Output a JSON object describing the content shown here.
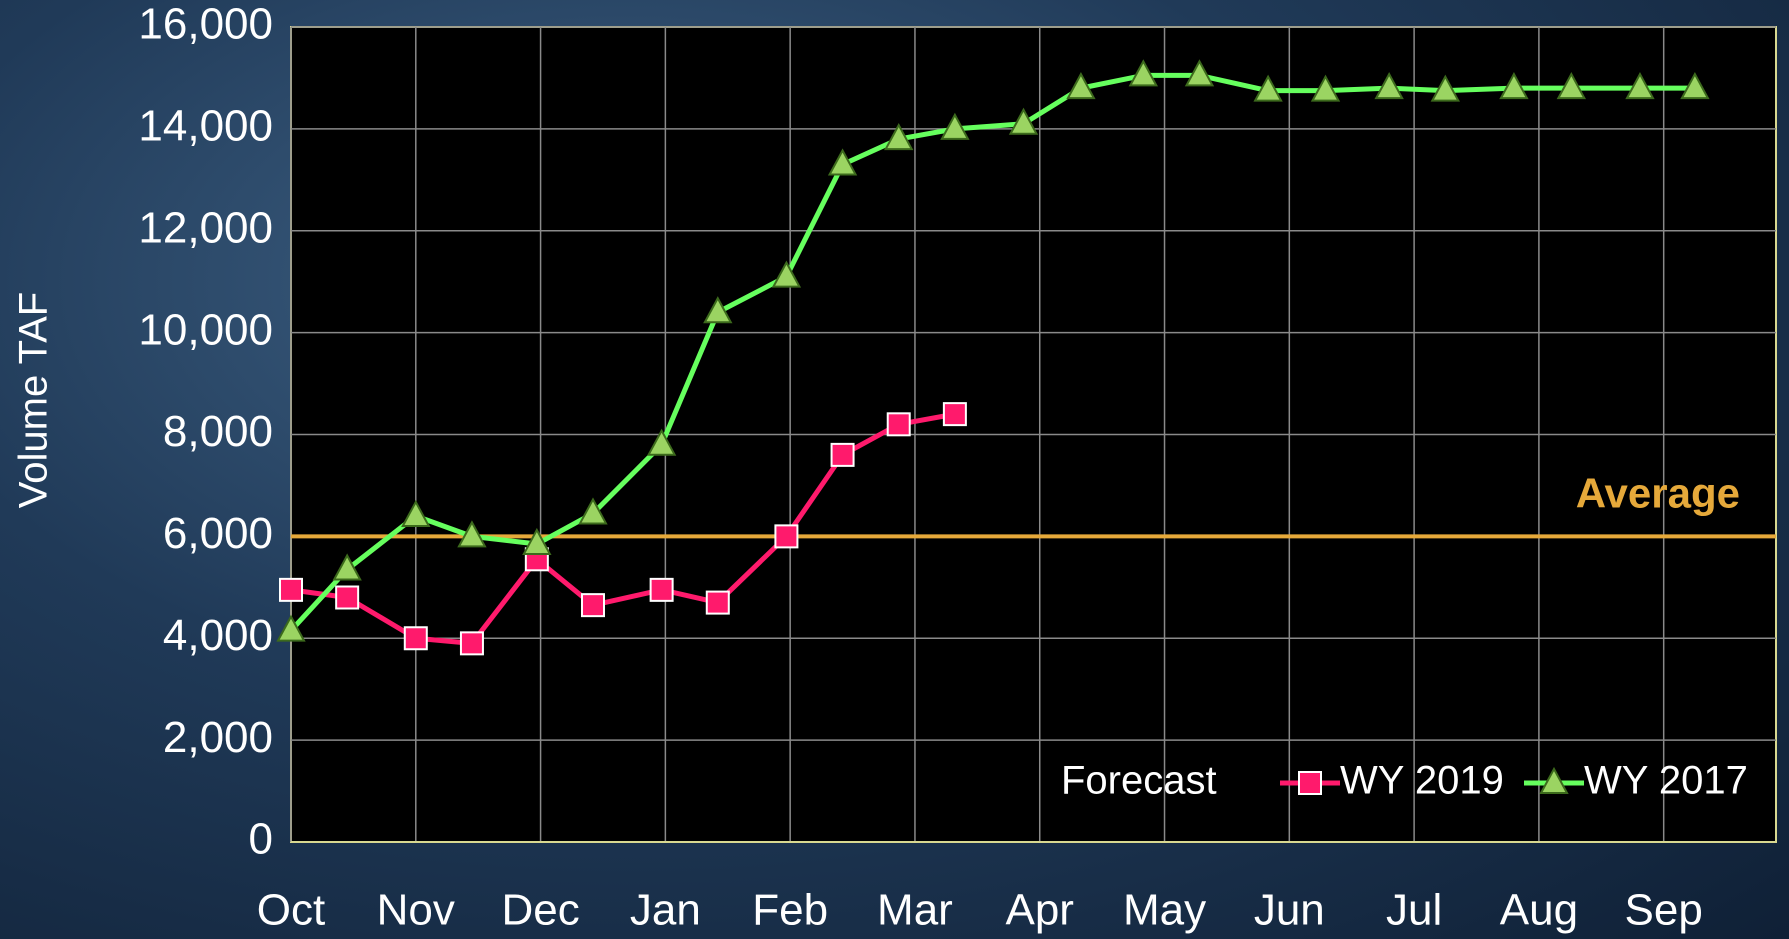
{
  "chart_data": {
    "type": "line",
    "y_label": "Volume TAF",
    "x": [
      0,
      0.45,
      1,
      1.45,
      1.97,
      2.42,
      2.97,
      3.42,
      3.97,
      4.42,
      4.87,
      5.32,
      5.87,
      6.33,
      6.83,
      7.28,
      7.83,
      8.29,
      8.8,
      9.25,
      9.8,
      10.26,
      10.81,
      11.25
    ],
    "xlim": [
      0,
      11.9
    ],
    "xticks": [
      {
        "value": 0,
        "label": "Oct"
      },
      {
        "value": 1,
        "label": "Nov"
      },
      {
        "value": 2,
        "label": "Dec"
      },
      {
        "value": 3,
        "label": "Jan"
      },
      {
        "value": 4,
        "label": "Feb"
      },
      {
        "value": 5,
        "label": "Mar"
      },
      {
        "value": 6,
        "label": "Apr"
      },
      {
        "value": 7,
        "label": "May"
      },
      {
        "value": 8,
        "label": "Jun"
      },
      {
        "value": 9,
        "label": "Jul"
      },
      {
        "value": 10,
        "label": "Aug"
      },
      {
        "value": 11,
        "label": "Sep"
      }
    ],
    "ylim": [
      0,
      16000
    ],
    "yticks": [
      0,
      {
        "value": 2000,
        "label": "2,000"
      },
      {
        "value": 4000,
        "label": "4,000"
      },
      {
        "value": 6000,
        "label": "6,000"
      },
      {
        "value": 8000,
        "label": "8,000"
      },
      {
        "value": 10000,
        "label": "10,000"
      },
      {
        "value": 12000,
        "label": "12,000"
      },
      {
        "value": 14000,
        "label": "14,000"
      },
      {
        "value": 16000,
        "label": "16,000"
      }
    ],
    "grid": true,
    "reference_lines": [
      {
        "value": 6000,
        "label": "Average",
        "color": "#e6a93a"
      }
    ],
    "legend_title": "Forecast",
    "legend": "lower right",
    "series": [
      {
        "name": "WY 2019",
        "color": "#ff1a6c",
        "marker": "square",
        "values": [
          4950,
          4800,
          4000,
          3900,
          5550,
          4650,
          4950,
          4700,
          6000,
          7600,
          8200,
          8400,
          null,
          null,
          null,
          null,
          null,
          null,
          null,
          null,
          null,
          null,
          null,
          null
        ]
      },
      {
        "name": "WY 2017",
        "color": "#66ff5e",
        "marker": "triangle",
        "values": [
          4150,
          5350,
          6400,
          6000,
          5850,
          6450,
          7800,
          10400,
          11100,
          13300,
          13800,
          14000,
          14100,
          14800,
          15050,
          15050,
          14750,
          14750,
          14800,
          14750,
          14800,
          14800,
          14800,
          14800
        ]
      }
    ]
  }
}
